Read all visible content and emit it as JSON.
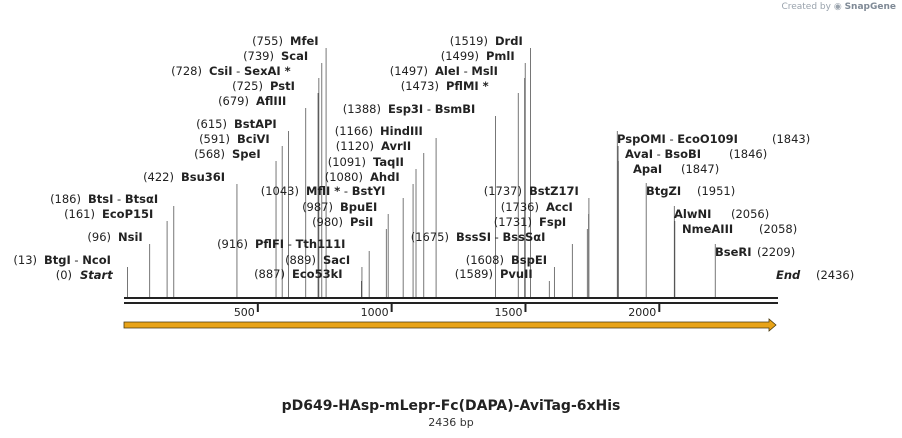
{
  "credit": {
    "prefix": "Created by",
    "brand": "SnapGene"
  },
  "construct": {
    "name": "pD649-HAsp-mLepr-Fc(DAPA)-AviTag-6xHis",
    "length_label": "2436 bp"
  },
  "sequence_length": 2436,
  "ruler": {
    "ticks": [
      500,
      1000,
      1500,
      2000
    ]
  },
  "ends": {
    "start": {
      "pos": "(0)",
      "label": "Start"
    },
    "end": {
      "pos": "(2436)",
      "label": "End"
    }
  },
  "sites": [
    {
      "pos": 13,
      "pos_label": "(13)",
      "names": [
        "BtgI",
        "NcoI"
      ]
    },
    {
      "pos": 96,
      "pos_label": "(96)",
      "names": [
        "NsiI"
      ]
    },
    {
      "pos": 161,
      "pos_label": "(161)",
      "names": [
        "EcoP15I"
      ]
    },
    {
      "pos": 186,
      "pos_label": "(186)",
      "names": [
        "BtsI",
        "BtsαI"
      ]
    },
    {
      "pos": 422,
      "pos_label": "(422)",
      "names": [
        "Bsu36I"
      ]
    },
    {
      "pos": 568,
      "pos_label": "(568)",
      "names": [
        "SpeI"
      ]
    },
    {
      "pos": 591,
      "pos_label": "(591)",
      "names": [
        "BciVI"
      ]
    },
    {
      "pos": 615,
      "pos_label": "(615)",
      "names": [
        "BstAPI"
      ]
    },
    {
      "pos": 679,
      "pos_label": "(679)",
      "names": [
        "AflIII"
      ]
    },
    {
      "pos": 725,
      "pos_label": "(725)",
      "names": [
        "PstI"
      ]
    },
    {
      "pos": 728,
      "pos_label": "(728)",
      "names": [
        "CsiI",
        "SexAI *"
      ]
    },
    {
      "pos": 739,
      "pos_label": "(739)",
      "names": [
        "ScaI"
      ]
    },
    {
      "pos": 755,
      "pos_label": "(755)",
      "names": [
        "MfeI"
      ]
    },
    {
      "pos": 887,
      "pos_label": "(887)",
      "names": [
        "Eco53kI"
      ]
    },
    {
      "pos": 889,
      "pos_label": "(889)",
      "names": [
        "SacI"
      ]
    },
    {
      "pos": 916,
      "pos_label": "(916)",
      "names": [
        "PflFI",
        "Tth111I"
      ]
    },
    {
      "pos": 980,
      "pos_label": "(980)",
      "names": [
        "PsiI"
      ]
    },
    {
      "pos": 987,
      "pos_label": "(987)",
      "names": [
        "BpuEI"
      ]
    },
    {
      "pos": 1043,
      "pos_label": "(1043)",
      "names": [
        "MflI *",
        "BstYI"
      ]
    },
    {
      "pos": 1080,
      "pos_label": "(1080)",
      "names": [
        "AhdI"
      ]
    },
    {
      "pos": 1091,
      "pos_label": "(1091)",
      "names": [
        "TaqII"
      ]
    },
    {
      "pos": 1120,
      "pos_label": "(1120)",
      "names": [
        "AvrII"
      ]
    },
    {
      "pos": 1166,
      "pos_label": "(1166)",
      "names": [
        "HindIII"
      ]
    },
    {
      "pos": 1388,
      "pos_label": "(1388)",
      "names": [
        "Esp3I",
        "BsmBI"
      ]
    },
    {
      "pos": 1473,
      "pos_label": "(1473)",
      "names": [
        "PflMI *"
      ]
    },
    {
      "pos": 1497,
      "pos_label": "(1497)",
      "names": [
        "AleI",
        "MslI"
      ]
    },
    {
      "pos": 1499,
      "pos_label": "(1499)",
      "names": [
        "PmlI"
      ]
    },
    {
      "pos": 1519,
      "pos_label": "(1519)",
      "names": [
        "DrdI"
      ]
    },
    {
      "pos": 1589,
      "pos_label": "(1589)",
      "names": [
        "PvuII"
      ]
    },
    {
      "pos": 1608,
      "pos_label": "(1608)",
      "names": [
        "BspEI"
      ]
    },
    {
      "pos": 1675,
      "pos_label": "(1675)",
      "names": [
        "BssSI",
        "BssSαI"
      ]
    },
    {
      "pos": 1731,
      "pos_label": "(1731)",
      "names": [
        "FspI"
      ]
    },
    {
      "pos": 1736,
      "pos_label": "(1736)",
      "names": [
        "AccI"
      ]
    },
    {
      "pos": 1737,
      "pos_label": "(1737)",
      "names": [
        "BstZ17I"
      ]
    },
    {
      "pos": 1843,
      "pos_label": "(1843)",
      "names": [
        "PspOMI",
        "EcoO109I"
      ]
    },
    {
      "pos": 1846,
      "pos_label": "(1846)",
      "names": [
        "AvaI",
        "BsoBI"
      ]
    },
    {
      "pos": 1847,
      "pos_label": "(1847)",
      "names": [
        "ApaI"
      ]
    },
    {
      "pos": 1951,
      "pos_label": "(1951)",
      "names": [
        "BtgZI"
      ]
    },
    {
      "pos": 2056,
      "pos_label": "(2056)",
      "names": [
        "AlwNI"
      ]
    },
    {
      "pos": 2058,
      "pos_label": "(2058)",
      "names": [
        "NmeAIII"
      ]
    },
    {
      "pos": 2209,
      "pos_label": "(2209)",
      "names": [
        "BseRI"
      ]
    }
  ],
  "colors": {
    "feature_fill": "#e8a317",
    "feature_stroke": "#4a3a10",
    "line": "#222222",
    "leader": "#555555"
  }
}
